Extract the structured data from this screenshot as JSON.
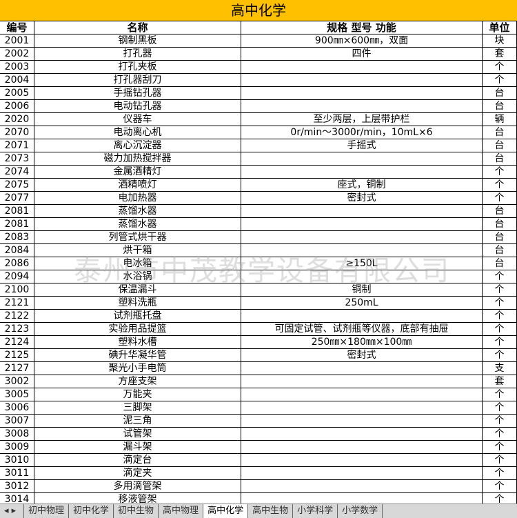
{
  "sheet": {
    "title": "高中化学",
    "headers": [
      "编号",
      "名称",
      "规格 型号 功能",
      "单位"
    ],
    "rows": [
      {
        "id": "2001",
        "name": "钢制黑板",
        "spec": "900㎜×600㎜，双面",
        "unit": "块"
      },
      {
        "id": "2002",
        "name": "打孔器",
        "spec": "四件",
        "unit": "套"
      },
      {
        "id": "2003",
        "name": "打孔夹板",
        "unit": "个"
      },
      {
        "id": "2004",
        "name": "打孔器刮刀",
        "unit": "个"
      },
      {
        "id": "2005",
        "name": "手摇钻孔器",
        "unit": "台"
      },
      {
        "id": "2006",
        "name": "电动钻孔器",
        "unit": "台"
      },
      {
        "id": "2020",
        "name": "仪器车",
        "spec": "至少两层，上层带护栏",
        "unit": "辆"
      },
      {
        "id": "2070",
        "name": "电动离心机",
        "spec": "0r/min～3000r/min，10mL×6",
        "unit": "台"
      },
      {
        "id": "2071",
        "name": "离心沉淀器",
        "spec": "手摇式",
        "unit": "台"
      },
      {
        "id": "2073",
        "name": "磁力加热搅拌器",
        "unit": "台"
      },
      {
        "id": "2074",
        "name": "金属酒精灯",
        "unit": "个"
      },
      {
        "id": "2075",
        "name": "酒精喷灯",
        "spec": "座式，铜制",
        "unit": "个"
      },
      {
        "id": "2077",
        "name": "电加热器",
        "spec": "密封式",
        "unit": "个"
      },
      {
        "id": "2081",
        "name": "蒸馏水器",
        "unit": "台"
      },
      {
        "id": "2081",
        "name": "蒸馏水器",
        "unit": "台"
      },
      {
        "id": "2083",
        "name": "列管式烘干器",
        "unit": "台"
      },
      {
        "id": "2084",
        "name": "烘干箱",
        "unit": "台"
      },
      {
        "id": "2086",
        "name": "电冰箱",
        "spec": "≥150L",
        "unit": "台"
      },
      {
        "id": "2094",
        "name": "水浴锅",
        "unit": "个"
      },
      {
        "id": "2100",
        "name": "保温漏斗",
        "spec": "铜制",
        "unit": "个"
      },
      {
        "id": "2121",
        "name": "塑料洗瓶",
        "spec": "250mL",
        "unit": "个"
      },
      {
        "id": "2122",
        "name": "试剂瓶托盘",
        "unit": "个"
      },
      {
        "id": "2123",
        "name": "实验用品提篮",
        "spec": "可固定试管、试剂瓶等仪器，底部有抽屉",
        "unit": "个"
      },
      {
        "id": "2124",
        "name": "塑料水槽",
        "spec": "250㎜×180㎜×100㎜",
        "unit": "个"
      },
      {
        "id": "2125",
        "name": "碘升华凝华管",
        "spec": "密封式",
        "unit": "个"
      },
      {
        "id": "2127",
        "name": "聚光小手电筒",
        "unit": "支"
      },
      {
        "id": "3002",
        "name": "方座支架",
        "unit": "套"
      },
      {
        "id": "3005",
        "name": "万能夹",
        "unit": "个"
      },
      {
        "id": "3006",
        "name": "三脚架",
        "unit": "个"
      },
      {
        "id": "3007",
        "name": "泥三角",
        "unit": "个"
      },
      {
        "id": "3008",
        "name": "试管架",
        "unit": "个"
      },
      {
        "id": "3009",
        "name": "漏斗架",
        "unit": "个"
      },
      {
        "id": "3010",
        "name": "滴定台",
        "unit": "个"
      },
      {
        "id": "3011",
        "name": "滴定夹",
        "unit": "个"
      },
      {
        "id": "3012",
        "name": "多用滴管架",
        "unit": "个"
      },
      {
        "id": "3014",
        "name": "移液管架",
        "unit": "个"
      }
    ],
    "watermark": "泰州市中茂教学设备有限公司",
    "tabs": [
      "初中物理",
      "初中化学",
      "初中生物",
      "高中物理",
      "高中化学",
      "高中生物",
      "小学科学",
      "小学数学"
    ],
    "active_tab": 4
  }
}
